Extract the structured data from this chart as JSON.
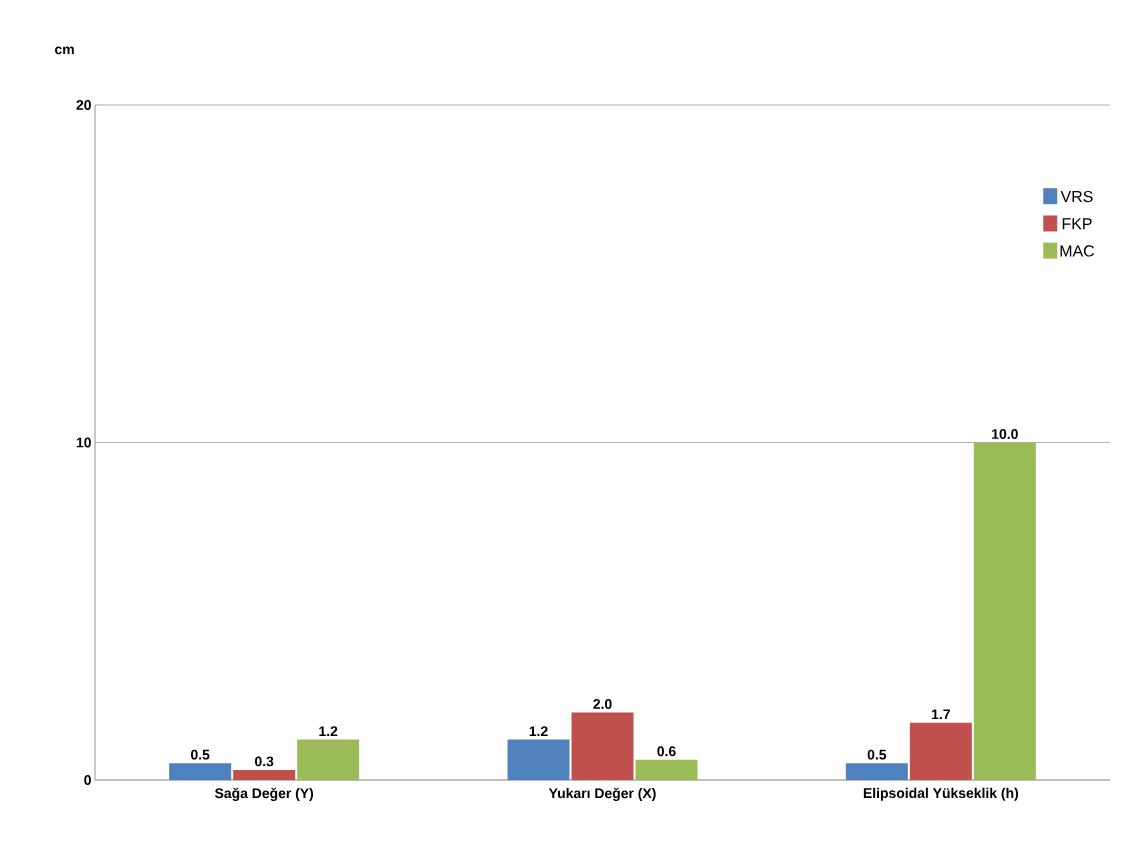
{
  "chart_data": {
    "type": "bar",
    "ylabel": "cm",
    "categories": [
      "Sağa Değer (Y)",
      "Yukarı Değer (X)",
      "Elipsoidal Yükseklik (h)"
    ],
    "series": [
      {
        "name": "VRS",
        "color": "#4f81bd",
        "values": [
          0.5,
          1.2,
          0.5
        ],
        "value_labels": [
          "0.5",
          "1.2",
          "0.5"
        ]
      },
      {
        "name": "FKP",
        "color": "#c0504d",
        "values": [
          0.3,
          2.0,
          1.7
        ],
        "value_labels": [
          "0.3",
          "2.0",
          "1.7"
        ]
      },
      {
        "name": "MAC",
        "color": "#9bbb59",
        "values": [
          1.2,
          0.6,
          10.0
        ],
        "value_labels": [
          "1.2",
          "0.6",
          "10.0"
        ]
      }
    ],
    "ylim": [
      0,
      20
    ],
    "yticks": [
      0,
      10,
      20
    ],
    "grid": "y",
    "legend": "top right"
  }
}
